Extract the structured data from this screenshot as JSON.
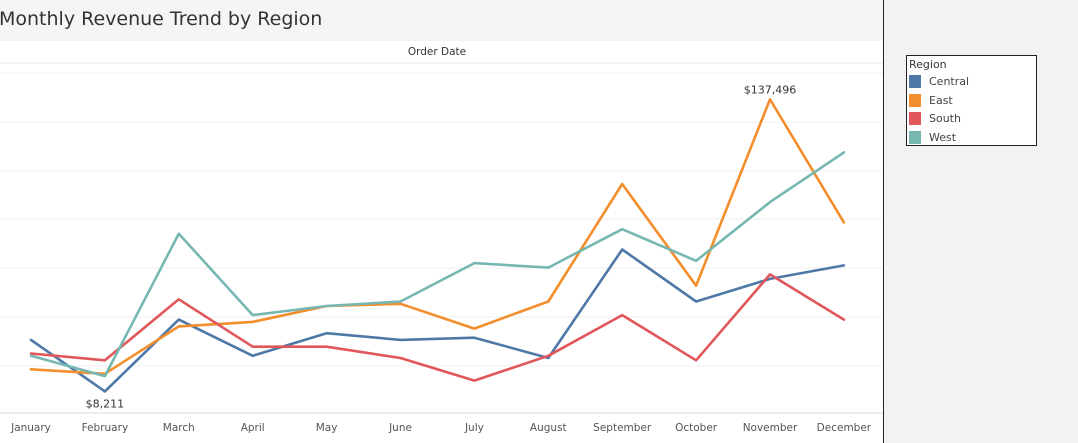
{
  "chart_data": {
    "type": "line",
    "title": "Monthly Revenue Trend by Region",
    "xlabel": "Order Date",
    "ylabel": "",
    "categories": [
      "January",
      "February",
      "March",
      "April",
      "May",
      "June",
      "July",
      "August",
      "September",
      "October",
      "November",
      "December"
    ],
    "ylim": [
      0,
      150000
    ],
    "series": [
      {
        "name": "Central",
        "color": "#4e79a7",
        "values": [
          31000,
          8211,
          40000,
          24000,
          34000,
          31000,
          32000,
          23000,
          71000,
          48000,
          58000,
          64000
        ]
      },
      {
        "name": "East",
        "color": "#f28e2b",
        "values": [
          18000,
          16000,
          37000,
          39000,
          46000,
          47000,
          36000,
          48000,
          100000,
          55000,
          137496,
          83000
        ]
      },
      {
        "name": "South",
        "color": "#e15759",
        "values": [
          25000,
          22000,
          49000,
          28000,
          28000,
          23000,
          13000,
          24000,
          42000,
          22000,
          60000,
          40000
        ]
      },
      {
        "name": "West",
        "color": "#76b7b2",
        "values": [
          24000,
          15000,
          78000,
          42000,
          46000,
          48000,
          65000,
          63000,
          80000,
          66000,
          92000,
          114000
        ]
      }
    ],
    "annotations": [
      {
        "series": "Central",
        "category": "February",
        "text": "$8,211"
      },
      {
        "series": "East",
        "category": "November",
        "text": "$137,496"
      }
    ],
    "grid": true,
    "legend_position": "top-right"
  },
  "legend": {
    "title": "Region"
  }
}
